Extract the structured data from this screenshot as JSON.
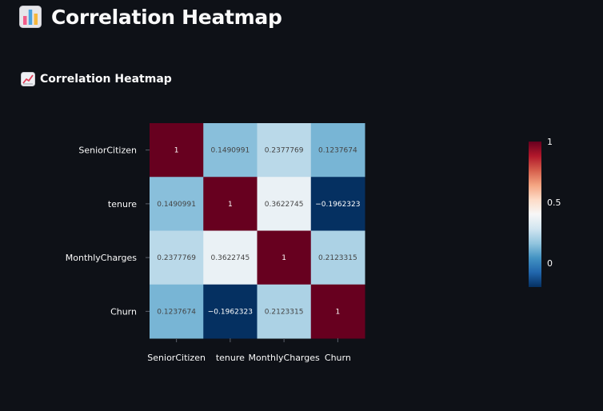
{
  "header": {
    "title": "Correlation Heatmap",
    "icon": "bar-chart-icon"
  },
  "section": {
    "title": "Correlation Heatmap",
    "icon": "chart-increasing-icon"
  },
  "colors": {
    "background": "#0e1117",
    "scale_low": "#053061",
    "scale_mid": "#f7f7f7",
    "scale_high": "#67001f"
  },
  "chart_data": {
    "type": "heatmap",
    "x_categories": [
      "SeniorCitizen",
      "tenure",
      "MonthlyCharges",
      "Churn"
    ],
    "y_categories": [
      "SeniorCitizen",
      "tenure",
      "MonthlyCharges",
      "Churn"
    ],
    "values": [
      [
        1,
        0.1490991,
        0.2377769,
        0.1237674
      ],
      [
        0.1490991,
        1,
        0.3622745,
        -0.1962323
      ],
      [
        0.2377769,
        0.3622745,
        1,
        0.2123315
      ],
      [
        0.1237674,
        -0.1962323,
        0.2123315,
        1
      ]
    ],
    "value_labels": [
      [
        "1",
        "0.1490991",
        "0.2377769",
        "0.1237674"
      ],
      [
        "0.1490991",
        "1",
        "0.3622745",
        "−0.1962323"
      ],
      [
        "0.2377769",
        "0.3622745",
        "1",
        "0.2123315"
      ],
      [
        "0.1237674",
        "−0.1962323",
        "0.2123315",
        "1"
      ]
    ],
    "colorscale": "RdBu_r",
    "zmin": -0.1962323,
    "zmax": 1,
    "colorbar": {
      "tick_values": [
        0,
        0.5,
        1
      ],
      "tick_labels": [
        "0",
        "0.5",
        "1"
      ]
    },
    "title": "",
    "xlabel": "",
    "ylabel": ""
  }
}
